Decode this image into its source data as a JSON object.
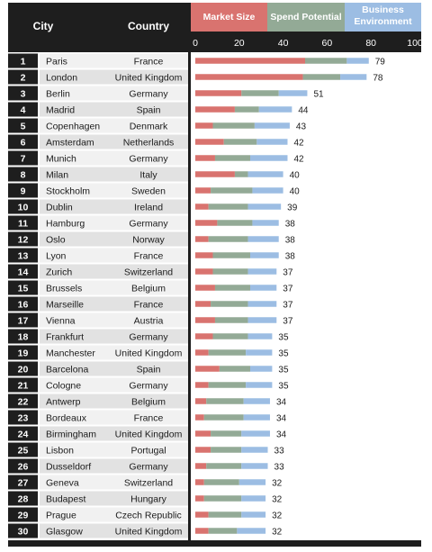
{
  "header": {
    "city_label": "City",
    "country_label": "Country"
  },
  "colors": {
    "market_size": "#d9736f",
    "spend_potential": "#93aa96",
    "business_environment": "#9cbde3",
    "dark": "#1e1e1e",
    "rank_dark": "#1e1e1e",
    "row_light": "#f1f1f1",
    "row_dark": "#e2e2e2"
  },
  "chart_data": {
    "type": "bar",
    "stacked": true,
    "orientation": "horizontal",
    "title": "",
    "xlabel": "",
    "ylabel": "",
    "xlim": [
      0,
      100
    ],
    "x_ticks": [
      "0",
      "20",
      "40",
      "60",
      "80",
      "100"
    ],
    "legend_placement": "top",
    "grid": false,
    "series": [
      {
        "name": "Market Size",
        "values": [
          50,
          49,
          21,
          18,
          8,
          13,
          9,
          18,
          7,
          6,
          10,
          6,
          8,
          8,
          9,
          7,
          9,
          8,
          6,
          11,
          6,
          5,
          4,
          7,
          7,
          5,
          4,
          4,
          6,
          6
        ]
      },
      {
        "name": "Spend Potential",
        "values": [
          19,
          17,
          17,
          11,
          19,
          15,
          16,
          6,
          19,
          18,
          16,
          18,
          17,
          16,
          16,
          17,
          15,
          16,
          17,
          14,
          17,
          17,
          18,
          14,
          14,
          16,
          16,
          17,
          15,
          13
        ]
      },
      {
        "name": "Business Environment",
        "values": [
          10,
          12,
          13,
          15,
          16,
          14,
          17,
          16,
          14,
          15,
          12,
          14,
          13,
          13,
          12,
          13,
          13,
          11,
          12,
          10,
          12,
          12,
          12,
          13,
          12,
          12,
          12,
          11,
          11,
          13
        ]
      }
    ],
    "rows": [
      {
        "rank": "1",
        "city": "Paris",
        "country": "France",
        "total": 79
      },
      {
        "rank": "2",
        "city": "London",
        "country": "United Kingdom",
        "total": 78
      },
      {
        "rank": "3",
        "city": "Berlin",
        "country": "Germany",
        "total": 51
      },
      {
        "rank": "4",
        "city": "Madrid",
        "country": "Spain",
        "total": 44
      },
      {
        "rank": "5",
        "city": "Copenhagen",
        "country": "Denmark",
        "total": 43
      },
      {
        "rank": "6",
        "city": "Amsterdam",
        "country": "Netherlands",
        "total": 42
      },
      {
        "rank": "7",
        "city": "Munich",
        "country": "Germany",
        "total": 42
      },
      {
        "rank": "8",
        "city": "Milan",
        "country": "Italy",
        "total": 40
      },
      {
        "rank": "9",
        "city": "Stockholm",
        "country": "Sweden",
        "total": 40
      },
      {
        "rank": "10",
        "city": "Dublin",
        "country": "Ireland",
        "total": 39
      },
      {
        "rank": "11",
        "city": "Hamburg",
        "country": "Germany",
        "total": 38
      },
      {
        "rank": "12",
        "city": "Oslo",
        "country": "Norway",
        "total": 38
      },
      {
        "rank": "13",
        "city": "Lyon",
        "country": "France",
        "total": 38
      },
      {
        "rank": "14",
        "city": "Zurich",
        "country": "Switzerland",
        "total": 37
      },
      {
        "rank": "15",
        "city": "Brussels",
        "country": "Belgium",
        "total": 37
      },
      {
        "rank": "16",
        "city": "Marseille",
        "country": "France",
        "total": 37
      },
      {
        "rank": "17",
        "city": "Vienna",
        "country": "Austria",
        "total": 37
      },
      {
        "rank": "18",
        "city": "Frankfurt",
        "country": "Germany",
        "total": 35
      },
      {
        "rank": "19",
        "city": "Manchester",
        "country": "United Kingdom",
        "total": 35
      },
      {
        "rank": "20",
        "city": "Barcelona",
        "country": "Spain",
        "total": 35
      },
      {
        "rank": "21",
        "city": "Cologne",
        "country": "Germany",
        "total": 35
      },
      {
        "rank": "22",
        "city": "Antwerp",
        "country": "Belgium",
        "total": 34
      },
      {
        "rank": "23",
        "city": "Bordeaux",
        "country": "France",
        "total": 34
      },
      {
        "rank": "24",
        "city": "Birmingham",
        "country": "United Kingdom",
        "total": 34
      },
      {
        "rank": "25",
        "city": "Lisbon",
        "country": "Portugal",
        "total": 33
      },
      {
        "rank": "26",
        "city": "Dusseldorf",
        "country": "Germany",
        "total": 33
      },
      {
        "rank": "27",
        "city": "Geneva",
        "country": "Switzerland",
        "total": 32
      },
      {
        "rank": "28",
        "city": "Budapest",
        "country": "Hungary",
        "total": 32
      },
      {
        "rank": "29",
        "city": "Prague",
        "country": "Czech Republic",
        "total": 32
      },
      {
        "rank": "30",
        "city": "Glasgow",
        "country": "United Kingdom",
        "total": 32
      }
    ]
  }
}
